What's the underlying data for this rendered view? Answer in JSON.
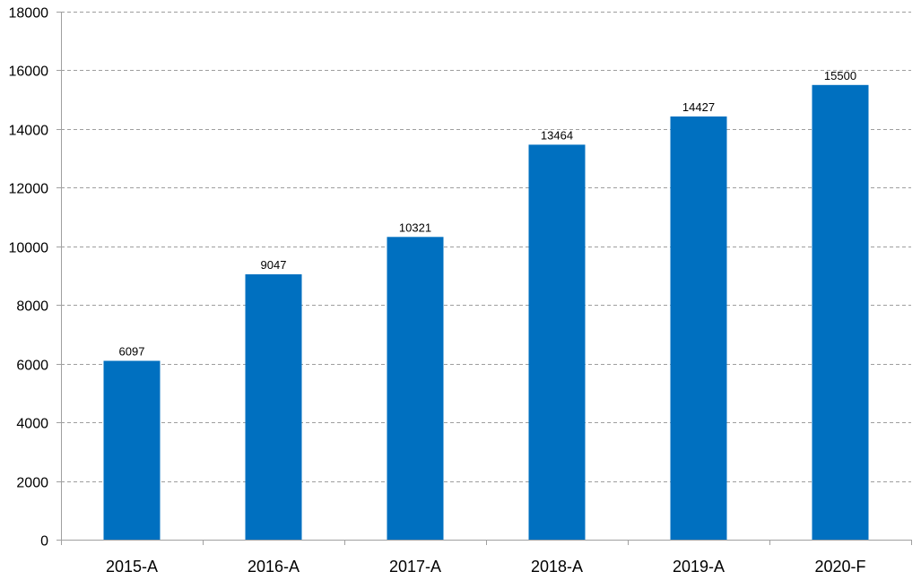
{
  "chart_data": {
    "type": "bar",
    "categories": [
      "2015-A",
      "2016-A",
      "2017-A",
      "2018-A",
      "2019-A",
      "2020-F"
    ],
    "series": [
      {
        "values": [
          6097,
          9047,
          10321,
          13464,
          14427,
          15500
        ]
      }
    ],
    "data_labels": [
      "6097",
      "9047",
      "10321",
      "13464",
      "14427",
      "15500"
    ],
    "y_ticks": [
      "0",
      "2000",
      "4000",
      "6000",
      "8000",
      "10000",
      "12000",
      "14000",
      "16000",
      "18000"
    ],
    "ylim": [
      0,
      18000
    ],
    "grid": true,
    "legend": "none",
    "colors": {
      "bar": "#0070C0",
      "grid": "#9E9E9E",
      "axis": "#A0A0A0"
    }
  }
}
